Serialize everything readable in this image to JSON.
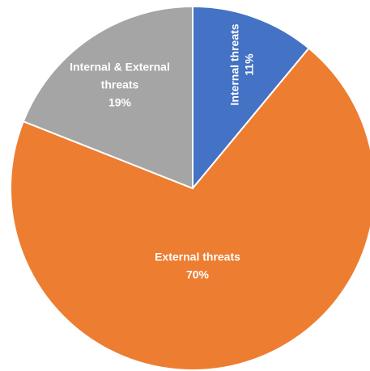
{
  "chart_data": {
    "type": "pie",
    "start_angle_deg": 0,
    "direction": "clockwise",
    "slices": [
      {
        "name": "Internal threats",
        "value": 11,
        "label_lines": [
          "Internal threats",
          "11%"
        ],
        "color": "#4472C4",
        "label_rotated": true
      },
      {
        "name": "External threats",
        "value": 70,
        "label_lines": [
          "External threats",
          "70%"
        ],
        "color": "#ED7D31",
        "label_rotated": false
      },
      {
        "name": "Internal & External threats",
        "value": 19,
        "label_lines": [
          "Internal & External",
          "threats",
          "19%"
        ],
        "color": "#A5A5A5",
        "label_rotated": false
      }
    ],
    "slice_border_color": "#ffffff",
    "legend": "none"
  }
}
